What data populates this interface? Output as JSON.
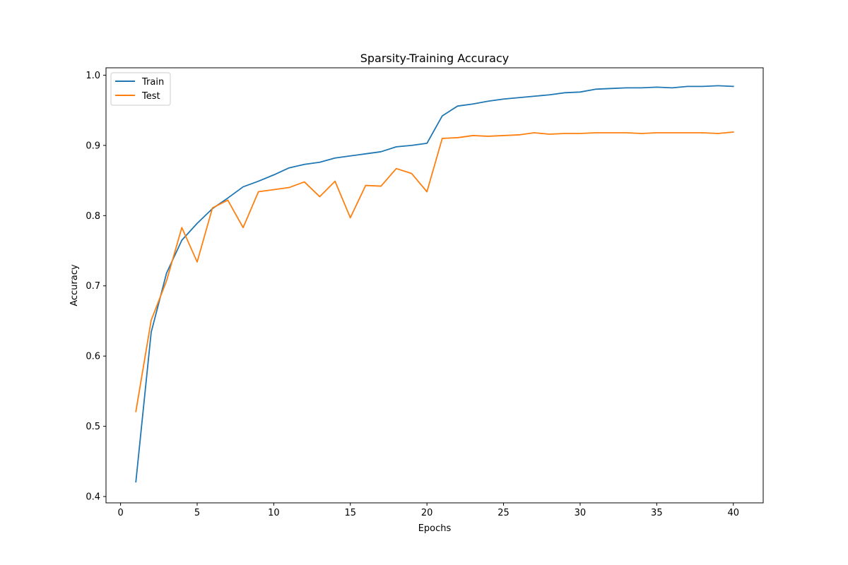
{
  "chart_data": {
    "type": "line",
    "title": "Sparsity-Training Accuracy",
    "xlabel": "Epochs",
    "ylabel": "Accuracy",
    "xlim": [
      -0.95,
      41.95
    ],
    "ylim": [
      0.391,
      1.0105
    ],
    "xticks": [
      0,
      5,
      10,
      15,
      20,
      25,
      30,
      35,
      40
    ],
    "yticks": [
      0.4,
      0.5,
      0.6,
      0.7,
      0.8,
      0.9,
      1.0
    ],
    "ytick_labels": [
      "0.4",
      "0.5",
      "0.6",
      "0.7",
      "0.8",
      "0.9",
      "1.0"
    ],
    "grid": false,
    "legend_position": "upper-left",
    "x": [
      1,
      2,
      3,
      4,
      5,
      6,
      7,
      8,
      9,
      10,
      11,
      12,
      13,
      14,
      15,
      16,
      17,
      18,
      19,
      20,
      21,
      22,
      23,
      24,
      25,
      26,
      27,
      28,
      29,
      30,
      31,
      32,
      33,
      34,
      35,
      36,
      37,
      38,
      39,
      40
    ],
    "series": [
      {
        "name": "Train",
        "color": "#1f77b4",
        "values": [
          0.421,
          0.634,
          0.718,
          0.765,
          0.789,
          0.81,
          0.825,
          0.841,
          0.849,
          0.858,
          0.868,
          0.873,
          0.876,
          0.882,
          0.885,
          0.888,
          0.891,
          0.898,
          0.9,
          0.903,
          0.942,
          0.956,
          0.959,
          0.963,
          0.966,
          0.968,
          0.97,
          0.972,
          0.975,
          0.976,
          0.98,
          0.981,
          0.982,
          0.982,
          0.983,
          0.982,
          0.984,
          0.984,
          0.985,
          0.984
        ]
      },
      {
        "name": "Test",
        "color": "#ff7f0e",
        "values": [
          0.521,
          0.651,
          0.707,
          0.783,
          0.734,
          0.811,
          0.822,
          0.783,
          0.834,
          0.837,
          0.84,
          0.848,
          0.827,
          0.849,
          0.797,
          0.843,
          0.842,
          0.867,
          0.86,
          0.834,
          0.91,
          0.911,
          0.914,
          0.913,
          0.914,
          0.915,
          0.918,
          0.916,
          0.917,
          0.917,
          0.918,
          0.918,
          0.918,
          0.917,
          0.918,
          0.918,
          0.918,
          0.918,
          0.917,
          0.919
        ]
      }
    ]
  }
}
